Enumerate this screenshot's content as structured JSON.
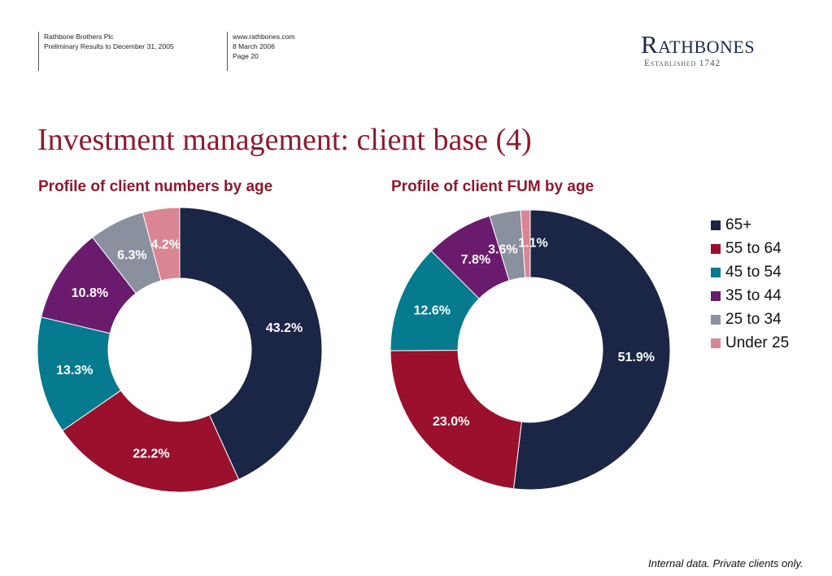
{
  "header": {
    "company": "Rathbone Brothers Plc",
    "report": "Preliminary Results to December 31, 2005",
    "website": "www.rathbones.com",
    "date": "8 March 2006",
    "page": "Page 20"
  },
  "logo": {
    "name": "Rathbones",
    "established": "Established 1742"
  },
  "page_title": "Investment management: client base (4)",
  "footnote": "Internal data.  Private clients only.",
  "colors": {
    "65+": "#1b2646",
    "55 to 64": "#9b102c",
    "45 to 54": "#067a8e",
    "35 to 44": "#6b1b6d",
    "25 to 34": "#8a909e",
    "Under 25": "#d98593"
  },
  "chart_data": [
    {
      "type": "pie",
      "donut": true,
      "title": "Profile of client numbers by age",
      "categories": [
        "65+",
        "55 to 64",
        "45 to 54",
        "35 to 44",
        "25 to 34",
        "Under 25"
      ],
      "values": [
        43.2,
        22.2,
        13.3,
        10.8,
        6.3,
        4.2
      ],
      "labels": [
        "43.2%",
        "22.2%",
        "13.3%",
        "10.8%",
        "6.3%",
        "4.2%"
      ]
    },
    {
      "type": "pie",
      "donut": true,
      "title": "Profile of client FUM by age",
      "categories": [
        "65+",
        "55 to 64",
        "45 to 54",
        "35 to 44",
        "25 to 34",
        "Under 25"
      ],
      "values": [
        51.9,
        23.0,
        12.6,
        7.8,
        3.6,
        1.1
      ],
      "labels": [
        "51.9%",
        "23.0%",
        "12.6%",
        "7.8%",
        "3.6%",
        "1.1%"
      ]
    }
  ],
  "legend": [
    "65+",
    "55 to 64",
    "45 to 54",
    "35 to 44",
    "25 to 34",
    "Under 25"
  ]
}
